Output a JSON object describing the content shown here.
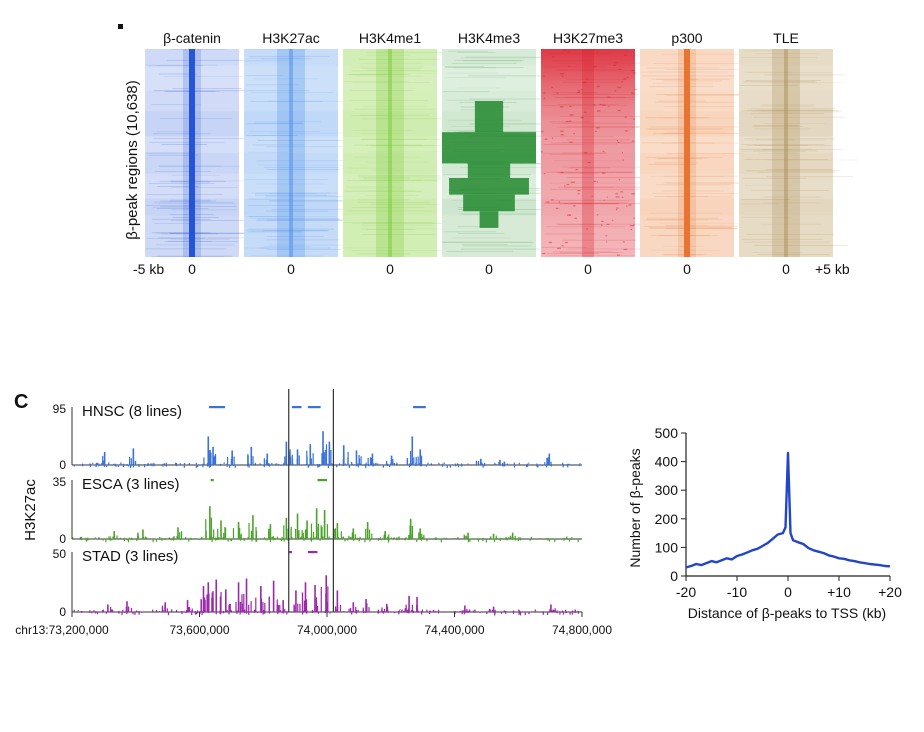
{
  "heatmap_panel": {
    "ylabel": "β-peak regions (10,638)",
    "left_label": "-5 kb",
    "right_label": "+5 kb",
    "center_label": "0",
    "columns": [
      {
        "name": "β-catenin",
        "color": "#1f4fd6",
        "bg": "#e4ebfb",
        "pattern": "narrow-center"
      },
      {
        "name": "H3K27ac",
        "color": "#3e86e8",
        "bg": "#d7e7fb",
        "pattern": "broad-bands"
      },
      {
        "name": "H3K4me1",
        "color": "#76c62d",
        "bg": "#def3c7",
        "pattern": "broad-bands"
      },
      {
        "name": "H3K4me3",
        "color": "#22882e",
        "bg": "#edf7ec",
        "pattern": "tss-blocks"
      },
      {
        "name": "H3K27me3",
        "color": "#d91f2d",
        "bg": "#fbe3e4",
        "pattern": "top-dense"
      },
      {
        "name": "p300",
        "color": "#e8702a",
        "bg": "#fbe6d6",
        "pattern": "narrow-center"
      },
      {
        "name": "TLE",
        "color": "#a8894f",
        "bg": "#eee5d4",
        "pattern": "broad-bands"
      }
    ]
  },
  "track_panel": {
    "panel_letter": "C",
    "ylabel": "H3K27ac",
    "x_axis": {
      "chrom_label": "chr13:73,200,000",
      "ticks": [
        {
          "pos": 73200000,
          "label": "chr13:73,200,000"
        },
        {
          "pos": 73600000,
          "label": "73,600,000"
        },
        {
          "pos": 74000000,
          "label": "74,000,000"
        },
        {
          "pos": 74400000,
          "label": "74,400,000"
        },
        {
          "pos": 74800000,
          "label": "74,800,000"
        }
      ],
      "range": [
        73200000,
        74800000
      ]
    },
    "highlight_region": [
      73880000,
      74020000
    ],
    "tracks": [
      {
        "name": "HNSC (8 lines)",
        "ymax_label": "95",
        "ymin_label": "0",
        "color": "#3a72d6",
        "peak_bars": [
          [
            73630000,
            73680000
          ],
          [
            73890000,
            73920000
          ],
          [
            73940000,
            73980000
          ],
          [
            74270000,
            74310000
          ]
        ],
        "peaks": [
          [
            73300000,
            0.25
          ],
          [
            73390000,
            0.32
          ],
          [
            73625000,
            0.55
          ],
          [
            73640000,
            0.35
          ],
          [
            73700000,
            0.28
          ],
          [
            73760000,
            0.35
          ],
          [
            73810000,
            0.22
          ],
          [
            73870000,
            0.45
          ],
          [
            73905000,
            0.3
          ],
          [
            73945000,
            0.4
          ],
          [
            73985000,
            0.65
          ],
          [
            74005000,
            0.45
          ],
          [
            74050000,
            0.38
          ],
          [
            74090000,
            0.28
          ],
          [
            74140000,
            0.22
          ],
          [
            74200000,
            0.18
          ],
          [
            74265000,
            0.55
          ],
          [
            74290000,
            0.3
          ],
          [
            74480000,
            0.12
          ],
          [
            74540000,
            0.1
          ],
          [
            74695000,
            0.22
          ]
        ]
      },
      {
        "name": "ESCA (3 lines)",
        "ymax_label": "35",
        "ymin_label": "0",
        "color": "#4aa329",
        "peak_bars": [
          [
            73635000,
            73645000
          ],
          [
            73970000,
            74000000
          ]
        ],
        "peaks": [
          [
            73330000,
            0.15
          ],
          [
            73420000,
            0.18
          ],
          [
            73530000,
            0.22
          ],
          [
            73630000,
            0.62
          ],
          [
            73665000,
            0.35
          ],
          [
            73720000,
            0.32
          ],
          [
            73765000,
            0.45
          ],
          [
            73820000,
            0.28
          ],
          [
            73870000,
            0.4
          ],
          [
            73905000,
            0.48
          ],
          [
            73935000,
            0.35
          ],
          [
            73965000,
            0.58
          ],
          [
            73990000,
            0.55
          ],
          [
            74030000,
            0.3
          ],
          [
            74080000,
            0.2
          ],
          [
            74125000,
            0.32
          ],
          [
            74180000,
            0.15
          ],
          [
            74260000,
            0.38
          ],
          [
            74290000,
            0.2
          ],
          [
            74440000,
            0.12
          ],
          [
            74520000,
            0.1
          ],
          [
            74580000,
            0.12
          ]
        ]
      },
      {
        "name": "STAD (3 lines)",
        "ymax_label": "50",
        "ymin_label": "0",
        "color": "#9a2aa8",
        "peak_bars": [
          [
            73880000,
            73890000
          ],
          [
            73940000,
            73970000
          ]
        ],
        "peaks": [
          [
            73310000,
            0.14
          ],
          [
            73370000,
            0.2
          ],
          [
            73490000,
            0.18
          ],
          [
            73560000,
            0.22
          ],
          [
            73610000,
            0.48
          ],
          [
            73625000,
            0.55
          ],
          [
            73650000,
            0.6
          ],
          [
            73680000,
            0.42
          ],
          [
            73720000,
            0.55
          ],
          [
            73745000,
            0.62
          ],
          [
            73790000,
            0.48
          ],
          [
            73830000,
            0.58
          ],
          [
            73860000,
            0.22
          ],
          [
            73900000,
            0.4
          ],
          [
            73930000,
            0.55
          ],
          [
            73960000,
            0.5
          ],
          [
            73995000,
            0.68
          ],
          [
            74030000,
            0.4
          ],
          [
            74080000,
            0.18
          ],
          [
            74120000,
            0.24
          ],
          [
            74185000,
            0.15
          ],
          [
            74255000,
            0.3
          ],
          [
            74280000,
            0.28
          ],
          [
            74430000,
            0.12
          ],
          [
            74520000,
            0.1
          ],
          [
            74700000,
            0.14
          ]
        ]
      }
    ]
  },
  "chart_data": {
    "type": "line",
    "title": "",
    "xlabel": "Distance of β-peaks to TSS (kb)",
    "ylabel": "Number of β-peaks",
    "xlim": [
      -20,
      20
    ],
    "ylim": [
      0,
      500
    ],
    "x_ticks": [
      {
        "value": -20,
        "label": "-20"
      },
      {
        "value": -10,
        "label": "-10"
      },
      {
        "value": 0,
        "label": "0"
      },
      {
        "value": 10,
        "label": "+10"
      },
      {
        "value": 20,
        "label": "+20"
      }
    ],
    "y_ticks": [
      {
        "value": 0,
        "label": "0"
      },
      {
        "value": 100,
        "label": "100"
      },
      {
        "value": 200,
        "label": "200"
      },
      {
        "value": 300,
        "label": "300"
      },
      {
        "value": 400,
        "label": "400"
      },
      {
        "value": 500,
        "label": "500"
      }
    ],
    "color": "#2346c8",
    "x": [
      -20,
      -19,
      -18,
      -17,
      -16,
      -15,
      -14,
      -13,
      -12,
      -11,
      -10,
      -9,
      -8,
      -7,
      -6,
      -5,
      -4,
      -3,
      -2,
      -1,
      -0.5,
      0,
      0.5,
      1,
      2,
      3,
      4,
      5,
      6,
      7,
      8,
      9,
      10,
      11,
      12,
      13,
      14,
      15,
      16,
      17,
      18,
      19,
      20
    ],
    "y": [
      30,
      35,
      42,
      38,
      45,
      52,
      48,
      55,
      62,
      58,
      70,
      75,
      82,
      90,
      95,
      105,
      115,
      130,
      145,
      150,
      170,
      430,
      150,
      125,
      118,
      112,
      98,
      90,
      85,
      80,
      72,
      68,
      62,
      60,
      55,
      52,
      48,
      45,
      42,
      40,
      38,
      35,
      34
    ]
  }
}
